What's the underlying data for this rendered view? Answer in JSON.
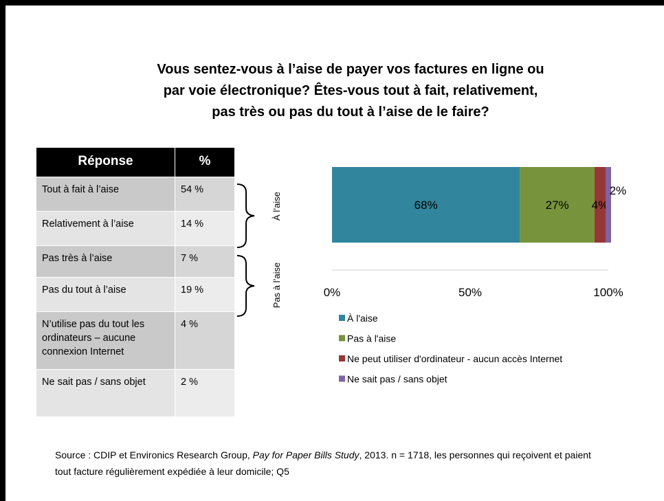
{
  "title": [
    "Vous sentez-vous à l’aise de payer vos factures en ligne ou",
    "par voie électronique? Êtes-vous tout à fait, relativement,",
    "pas très ou pas du tout à l’aise de le faire?"
  ],
  "table": {
    "header": [
      "Réponse",
      "%"
    ],
    "rows": [
      [
        "Tout à fait à l’aise",
        "54 %"
      ],
      [
        "Relativement à l’aise",
        "14 %"
      ],
      [
        "Pas très à l’aise",
        "7 %"
      ],
      [
        "Pas du tout à l’aise",
        "19 %"
      ],
      [
        "N’utilise pas du tout les ordinateurs – aucune connexion Internet",
        "4 %"
      ],
      [
        "Ne sait pas / sans objet",
        "2 %"
      ]
    ]
  },
  "groups": [
    "À l’aise",
    "Pas à l’aise"
  ],
  "chart_data": {
    "type": "bar",
    "orientation": "horizontal",
    "stacked": true,
    "categories": [
      null
    ],
    "series": [
      {
        "name": "À l'aise",
        "color": "#31859c",
        "values": [
          68
        ],
        "value_labels": [
          "68%"
        ]
      },
      {
        "name": "Pas à l'aise",
        "color": "#77933c",
        "values": [
          27
        ],
        "value_labels": [
          "27%"
        ]
      },
      {
        "name": "Ne peut utiliser d'ordinateur - aucun accès Internet",
        "color": "#953735",
        "values": [
          4
        ],
        "value_labels": [
          "4%"
        ]
      },
      {
        "name": "Ne sait pas / sans objet",
        "color": "#8064a2",
        "values": [
          2
        ],
        "value_labels": [
          "2%"
        ]
      }
    ],
    "xlim": [
      0,
      100
    ],
    "xticks": [
      {
        "value": 0,
        "label": "0%"
      },
      {
        "value": 50,
        "label": "50%"
      },
      {
        "value": 100,
        "label": "100%"
      }
    ],
    "legend": "bottom"
  },
  "source": {
    "before": "Source : CDIP et Environics Research Group, ",
    "italic": "Pay for Paper Bills Study",
    "after": ", 2013. n = 1718, les personnes qui reçoivent et paient tout facture régulièrement expédiée à leur domicile; Q5"
  }
}
